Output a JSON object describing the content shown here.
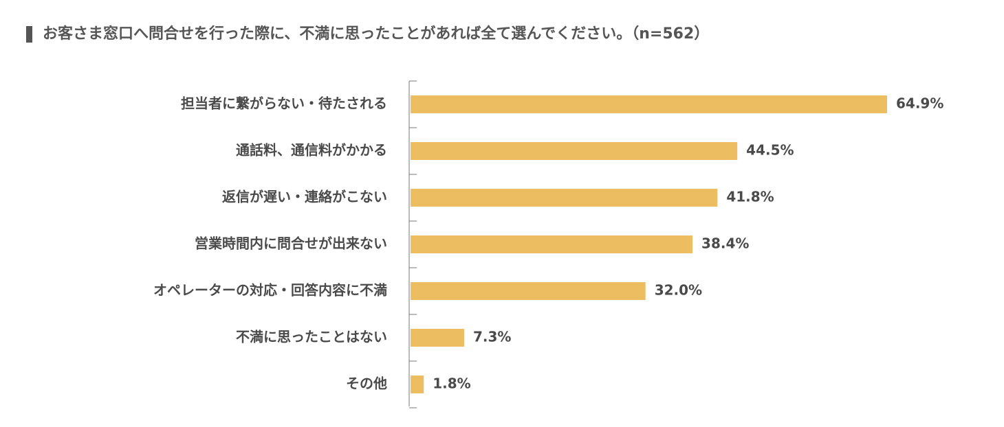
{
  "chart_data": {
    "type": "bar",
    "orientation": "horizontal",
    "title": "お客さま窓口へ問合せを行った際に、不満に思ったことがあれば全て選んでください。（n=562）",
    "categories": [
      "担当者に繋がらない・待たされる",
      "通話料、通信料がかかる",
      "返信が遅い・連絡がこない",
      "営業時間内に問合せが出来ない",
      "オペレーターの対応・回答内容に不満",
      "不満に思ったことはない",
      "その他"
    ],
    "values": [
      64.9,
      44.5,
      41.8,
      38.4,
      32.0,
      7.3,
      1.8
    ],
    "value_labels": [
      "64.9%",
      "44.5%",
      "41.8%",
      "38.4%",
      "32.0%",
      "7.3%",
      "1.8%"
    ],
    "color": "#edbd62"
  }
}
